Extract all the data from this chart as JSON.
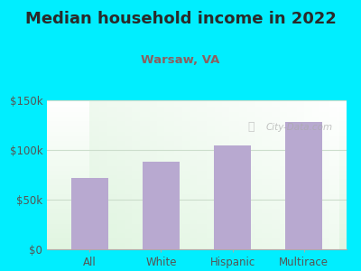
{
  "title": "Median household income in 2022",
  "subtitle": "Warsaw, VA",
  "categories": [
    "All",
    "White",
    "Hispanic",
    "Multirace"
  ],
  "values": [
    72000,
    88000,
    105000,
    128000
  ],
  "bar_color": "#b8a9d0",
  "title_color": "#2a2a2a",
  "subtitle_color": "#8b6060",
  "tick_color": "#555555",
  "background_outer": "#00eeff",
  "ylim": [
    0,
    150000
  ],
  "yticks": [
    0,
    50000,
    100000,
    150000
  ],
  "ytick_labels": [
    "$0",
    "$50k",
    "$100k",
    "$150k"
  ],
  "watermark": "City-Data.com",
  "title_fontsize": 13,
  "subtitle_fontsize": 9.5,
  "tick_fontsize": 8.5
}
